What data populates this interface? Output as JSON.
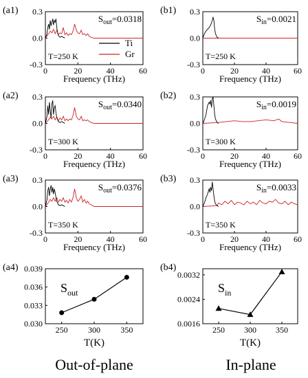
{
  "figure_captions": {
    "left": "Out-of-plane",
    "right": "In-plane"
  },
  "colors": {
    "ti": "#000000",
    "gr": "#cc2222",
    "axis": "#000000"
  },
  "chart_data": [
    {
      "id": "a1",
      "type": "line",
      "panel_label": "(a1)",
      "xlabel": "Frequency (THz)",
      "ylabel": "",
      "xlim": [
        0,
        60
      ],
      "ylim": [
        -0.3,
        0.3
      ],
      "xticks": [
        "0",
        "20",
        "40",
        "60"
      ],
      "yticks": [
        "-0.3",
        "0.0",
        "0.3"
      ],
      "annotations": {
        "s_symbol": "S",
        "s_sub": "out",
        "s_value": "=0.0318",
        "temperature": "T=250 K"
      },
      "legend": {
        "placement": "right",
        "entries": [
          "Ti",
          "Gr"
        ]
      },
      "series": [
        {
          "name": "Ti",
          "x": [
            0,
            1,
            1.5,
            2,
            2.5,
            3,
            3.5,
            4,
            4.5,
            5,
            5.5,
            6,
            6.5,
            7,
            7.5,
            8,
            9,
            10,
            11,
            12
          ],
          "y": [
            0,
            0.05,
            0.12,
            0.16,
            0.1,
            0.2,
            0.14,
            0.18,
            0.22,
            0.15,
            0.2,
            0.18,
            0.22,
            0.12,
            0.06,
            0.03,
            0.01,
            0.02,
            0.01,
            0
          ]
        },
        {
          "name": "Gr",
          "x": [
            0,
            2,
            3,
            4,
            5,
            6,
            7,
            8,
            9,
            10,
            11,
            12,
            13,
            14,
            15,
            16,
            17,
            18,
            19,
            20,
            21,
            22,
            23,
            24,
            25,
            26,
            27,
            28,
            30,
            35,
            40,
            45,
            50,
            55,
            60
          ],
          "y": [
            0,
            0.05,
            0.08,
            0.06,
            0.1,
            0.05,
            0.09,
            0.04,
            0.06,
            0.05,
            0.12,
            0.04,
            0.06,
            0.03,
            0.05,
            0.04,
            0.08,
            0.16,
            0.09,
            0.06,
            0.05,
            0.09,
            0.04,
            0.05,
            0.03,
            0.05,
            0.02,
            0.01,
            0,
            0,
            0,
            0,
            0,
            0,
            0
          ]
        }
      ]
    },
    {
      "id": "b1",
      "type": "line",
      "panel_label": "(b1)",
      "xlabel": "Frequency (THz)",
      "ylabel": "",
      "xlim": [
        0,
        60
      ],
      "ylim": [
        -0.3,
        0.3
      ],
      "xticks": [
        "0",
        "20",
        "40",
        "60"
      ],
      "yticks": [
        "-0.3",
        "0.0",
        "0.3"
      ],
      "annotations": {
        "s_symbol": "S",
        "s_sub": "in",
        "s_value": "=0.0021",
        "temperature": "T=250 K"
      },
      "series": [
        {
          "name": "Ti",
          "x": [
            0,
            1,
            2,
            3,
            4,
            5,
            6,
            6.5,
            7,
            7.5,
            8,
            9,
            10
          ],
          "y": [
            0,
            0.05,
            0.08,
            0.1,
            0.12,
            0.15,
            0.2,
            0.24,
            0.2,
            0.1,
            0.05,
            0.01,
            0
          ]
        },
        {
          "name": "Gr",
          "x": [
            0,
            10,
            20,
            30,
            40,
            50,
            60
          ],
          "y": [
            0,
            0,
            0,
            0,
            0,
            0,
            0
          ]
        }
      ]
    },
    {
      "id": "a2",
      "type": "line",
      "panel_label": "(a2)",
      "xlabel": "Frequency (THz)",
      "ylabel": "",
      "xlim": [
        0,
        60
      ],
      "ylim": [
        -0.3,
        0.3
      ],
      "xticks": [
        "0",
        "20",
        "40",
        "60"
      ],
      "yticks": [
        "-0.3",
        "0.0",
        "0.3"
      ],
      "annotations": {
        "s_symbol": "S",
        "s_sub": "out",
        "s_value": "=0.0340",
        "temperature": "T=300 K"
      },
      "series": [
        {
          "name": "Ti",
          "x": [
            0,
            1,
            1.5,
            2,
            2.5,
            3,
            3.5,
            4,
            4.5,
            5,
            5.5,
            6,
            6.5,
            7,
            7.5,
            8,
            9,
            10,
            11,
            12
          ],
          "y": [
            0,
            0.08,
            0.2,
            0.1,
            0.24,
            0.14,
            0.06,
            0.22,
            0.26,
            0.1,
            0.18,
            0.2,
            0.12,
            0.07,
            0.04,
            0.02,
            0.01,
            0.02,
            0.01,
            0
          ]
        },
        {
          "name": "Gr",
          "x": [
            0,
            2,
            3,
            4,
            5,
            6,
            7,
            8,
            9,
            10,
            11,
            12,
            13,
            14,
            15,
            16,
            17,
            18,
            19,
            20,
            21,
            22,
            23,
            24,
            25,
            26,
            27,
            28,
            30,
            35,
            40,
            45,
            50,
            55,
            60
          ],
          "y": [
            0,
            0.04,
            0.07,
            0.05,
            0.08,
            0.04,
            0.07,
            0.03,
            0.06,
            0.04,
            0.08,
            0.03,
            0.05,
            0.03,
            0.05,
            0.04,
            0.09,
            0.18,
            0.08,
            0.05,
            0.04,
            0.08,
            0.03,
            0.04,
            0.03,
            0.04,
            0.02,
            0.01,
            0,
            0,
            0,
            0,
            0,
            0,
            0
          ]
        }
      ]
    },
    {
      "id": "b2",
      "type": "line",
      "panel_label": "(b2)",
      "xlabel": "Frequency (THz)",
      "ylabel": "",
      "xlim": [
        0,
        60
      ],
      "ylim": [
        -0.3,
        0.3
      ],
      "xticks": [
        "0",
        "20",
        "40",
        "60"
      ],
      "yticks": [
        "-0.3",
        "0.0",
        "0.3"
      ],
      "annotations": {
        "s_symbol": "S",
        "s_sub": "in",
        "s_value": "=0.0019",
        "temperature": "T=300 K"
      },
      "series": [
        {
          "name": "Ti",
          "x": [
            0,
            1,
            2,
            3,
            4,
            4.5,
            5,
            5.5,
            6,
            6.5,
            7,
            7.5,
            8,
            9,
            10
          ],
          "y": [
            0,
            0.04,
            0.1,
            0.2,
            0.24,
            0.22,
            0.26,
            0.18,
            0.28,
            0.3,
            0.2,
            0.1,
            0.05,
            0.01,
            0
          ]
        },
        {
          "name": "Gr",
          "x": [
            0,
            10,
            15,
            20,
            25,
            30,
            35,
            40,
            45,
            48,
            50,
            55,
            60
          ],
          "y": [
            0,
            0.01,
            0.02,
            0.03,
            0.02,
            0.02,
            0.03,
            0.04,
            0.03,
            0.05,
            0.02,
            0.01,
            0
          ]
        }
      ]
    },
    {
      "id": "a3",
      "type": "line",
      "panel_label": "(a3)",
      "xlabel": "Frequency (THz)",
      "ylabel": "",
      "xlim": [
        0,
        60
      ],
      "ylim": [
        -0.3,
        0.3
      ],
      "xticks": [
        "0",
        "20",
        "40",
        "60"
      ],
      "yticks": [
        "-0.3",
        "0.0",
        "0.3"
      ],
      "annotations": {
        "s_symbol": "S",
        "s_sub": "out",
        "s_value": "=0.0376",
        "temperature": "T=350 K"
      },
      "series": [
        {
          "name": "Ti",
          "x": [
            0,
            1,
            1.5,
            2,
            2.5,
            3,
            3.5,
            4,
            4.5,
            5,
            5.5,
            6,
            6.5,
            7,
            7.5,
            8,
            9,
            10,
            11,
            12
          ],
          "y": [
            0,
            0.08,
            0.18,
            0.22,
            0.12,
            0.2,
            0.24,
            0.16,
            0.22,
            0.14,
            0.2,
            0.16,
            0.1,
            0.06,
            0.04,
            0.02,
            0.01,
            0.02,
            0.01,
            0
          ]
        },
        {
          "name": "Gr",
          "x": [
            0,
            2,
            3,
            4,
            5,
            6,
            7,
            8,
            9,
            10,
            11,
            12,
            13,
            14,
            15,
            16,
            17,
            18,
            19,
            20,
            21,
            22,
            23,
            24,
            25,
            26,
            27,
            28,
            30,
            35,
            40,
            45,
            50,
            55,
            60
          ],
          "y": [
            0,
            0.05,
            0.08,
            0.06,
            0.1,
            0.06,
            0.1,
            0.05,
            0.08,
            0.06,
            0.1,
            0.05,
            0.07,
            0.04,
            0.08,
            0.05,
            0.1,
            0.2,
            0.1,
            0.06,
            0.08,
            0.12,
            0.05,
            0.08,
            0.04,
            0.06,
            0.03,
            0.02,
            0,
            0,
            0,
            0,
            0,
            0,
            0
          ]
        }
      ]
    },
    {
      "id": "b3",
      "type": "line",
      "panel_label": "(b3)",
      "xlabel": "Frequency (THz)",
      "ylabel": "",
      "xlim": [
        0,
        60
      ],
      "ylim": [
        -0.3,
        0.3
      ],
      "xticks": [
        "0",
        "20",
        "40",
        "60"
      ],
      "yticks": [
        "-0.3",
        "0.0",
        "0.3"
      ],
      "annotations": {
        "s_symbol": "S",
        "s_sub": "in",
        "s_value": "=0.0033",
        "temperature": "T=350 K"
      },
      "series": [
        {
          "name": "Ti",
          "x": [
            0,
            1,
            2,
            3,
            4,
            4.5,
            5,
            5.5,
            6,
            6.5,
            7,
            7.5,
            8,
            9,
            10
          ],
          "y": [
            0,
            0.04,
            0.1,
            0.14,
            0.2,
            0.16,
            0.22,
            0.18,
            0.28,
            0.2,
            0.12,
            0.06,
            0.03,
            0.01,
            0
          ]
        },
        {
          "name": "Gr",
          "x": [
            0,
            9,
            10,
            12,
            14,
            16,
            18,
            20,
            22,
            24,
            26,
            28,
            30,
            32,
            34,
            36,
            38,
            40,
            42,
            44,
            46,
            48,
            50,
            52,
            54,
            56,
            58,
            60
          ],
          "y": [
            0,
            0.01,
            0.04,
            0.02,
            0.06,
            0.03,
            0.07,
            0.02,
            0.05,
            0.04,
            0.02,
            0.06,
            0.03,
            0.05,
            0.02,
            0.07,
            0.04,
            0.03,
            0.06,
            0.05,
            0.08,
            0.04,
            0.03,
            0.06,
            0.02,
            0.05,
            0.03,
            0.02
          ]
        }
      ]
    },
    {
      "id": "a4",
      "type": "line",
      "panel_label": "(a4)",
      "xlabel": "T(K)",
      "ylabel": "",
      "xlim": [
        225,
        375
      ],
      "ylim": [
        0.03,
        0.039
      ],
      "xticks": [
        "250",
        "300",
        "350"
      ],
      "yticks": [
        "0.030",
        "0.033",
        "0.036",
        "0.039"
      ],
      "annotations": {
        "s_symbol": "S",
        "s_sub": "out"
      },
      "marker": "circle",
      "series": [
        {
          "name": "",
          "x": [
            250,
            300,
            350
          ],
          "y": [
            0.0318,
            0.034,
            0.0376
          ]
        }
      ]
    },
    {
      "id": "b4",
      "type": "line",
      "panel_label": "(b4)",
      "xlabel": "T(K)",
      "ylabel": "",
      "xlim": [
        225,
        375
      ],
      "ylim": [
        0.0016,
        0.0034
      ],
      "xticks": [
        "250",
        "300",
        "350"
      ],
      "yticks": [
        "0.0016",
        "0.0024",
        "0.0032"
      ],
      "annotations": {
        "s_symbol": "S",
        "s_sub": "in"
      },
      "marker": "triangle",
      "series": [
        {
          "name": "",
          "x": [
            250,
            300,
            350
          ],
          "y": [
            0.0021,
            0.0019,
            0.0033
          ]
        }
      ]
    }
  ]
}
